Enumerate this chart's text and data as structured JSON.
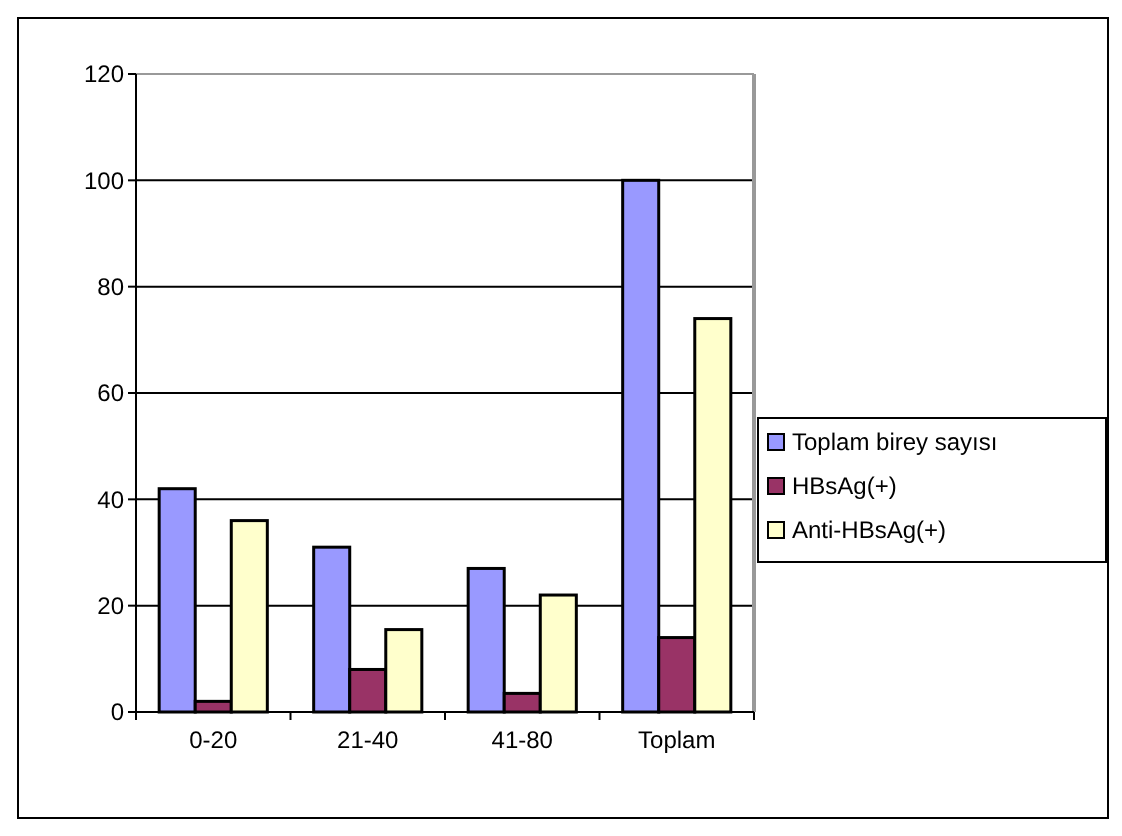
{
  "chart_data": {
    "type": "bar",
    "categories": [
      "0-20",
      "21-40",
      "41-80",
      "Toplam"
    ],
    "series": [
      {
        "name": "Toplam birey sayısı",
        "color": "#9999ff",
        "values": [
          42,
          31,
          27,
          100
        ]
      },
      {
        "name": "HBsAg(+)",
        "color": "#993366",
        "values": [
          2,
          8,
          3.5,
          14
        ]
      },
      {
        "name": "Anti-HBsAg(+)",
        "color": "#ffffcc",
        "values": [
          36,
          15.5,
          22,
          74
        ]
      }
    ],
    "ylim": [
      0,
      120
    ],
    "yticks": [
      0,
      20,
      40,
      60,
      80,
      100,
      120
    ],
    "grid": "y",
    "legend": "right"
  }
}
